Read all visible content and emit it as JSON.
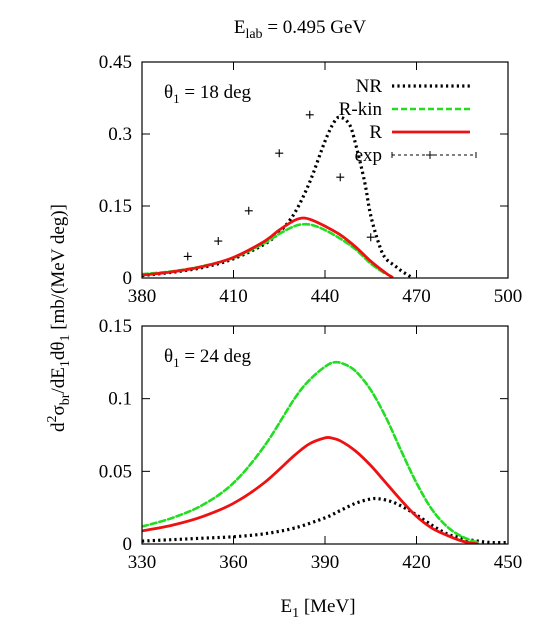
{
  "figure": {
    "title_main": "E",
    "title_sub": "lab",
    "title_rest": " = 0.495 GeV",
    "ylabel_parts": [
      "d",
      "2",
      "σ",
      "br",
      "/dE",
      "1",
      "dθ",
      "1",
      " [mb/(MeV deg)]"
    ],
    "xlabel_main": "E",
    "xlabel_sub": "1",
    "xlabel_rest": " [MeV]"
  },
  "colors": {
    "NR": "#000000",
    "R-kin": "#22dd22",
    "R": "#ee1111",
    "exp": "#000000"
  },
  "chart_data": [
    {
      "type": "line",
      "panel": "top",
      "annotation_main": "θ",
      "annotation_sub": "1",
      "annotation_rest": " = 18 deg",
      "xlim": [
        380,
        500
      ],
      "ylim": [
        0,
        0.45
      ],
      "xticks": [
        380,
        410,
        440,
        470,
        500
      ],
      "yticks": [
        0,
        0.15,
        0.3,
        0.45
      ],
      "xtick_labels": [
        "380",
        "410",
        "440",
        "470",
        "500"
      ],
      "ytick_labels": [
        "0",
        "0.15",
        "0.3",
        "0.45"
      ],
      "legend_position": "top-right",
      "series": [
        {
          "name": "NR",
          "style": "dotted",
          "x": [
            380,
            390,
            400,
            410,
            420,
            425,
            430,
            435,
            440,
            443,
            445,
            448,
            450,
            453,
            455,
            458,
            460,
            463,
            465,
            468
          ],
          "y": [
            0.005,
            0.012,
            0.022,
            0.04,
            0.07,
            0.095,
            0.135,
            0.2,
            0.285,
            0.325,
            0.335,
            0.32,
            0.28,
            0.2,
            0.13,
            0.065,
            0.04,
            0.025,
            0.015,
            0.003
          ]
        },
        {
          "name": "R-kin",
          "style": "dashed",
          "x": [
            380,
            390,
            400,
            410,
            420,
            425,
            430,
            433,
            436,
            440,
            445,
            450,
            455,
            460
          ],
          "y": [
            0.008,
            0.014,
            0.025,
            0.042,
            0.072,
            0.092,
            0.108,
            0.112,
            0.11,
            0.1,
            0.082,
            0.06,
            0.03,
            0.008
          ]
        },
        {
          "name": "R",
          "style": "solid",
          "x": [
            380,
            390,
            400,
            410,
            420,
            425,
            430,
            433,
            436,
            440,
            445,
            450,
            455,
            460,
            462
          ],
          "y": [
            0.006,
            0.013,
            0.024,
            0.043,
            0.076,
            0.1,
            0.12,
            0.125,
            0.12,
            0.108,
            0.09,
            0.065,
            0.035,
            0.01,
            0.002
          ]
        },
        {
          "name": "exp",
          "style": "points",
          "x": [
            395,
            405,
            415,
            425,
            435,
            445,
            455
          ],
          "y": [
            0.045,
            0.077,
            0.14,
            0.26,
            0.34,
            0.21,
            0.085
          ]
        }
      ]
    },
    {
      "type": "line",
      "panel": "bottom",
      "annotation_main": "θ",
      "annotation_sub": "1",
      "annotation_rest": " = 24 deg",
      "xlim": [
        330,
        450
      ],
      "ylim": [
        0,
        0.15
      ],
      "xticks": [
        330,
        360,
        390,
        420,
        450
      ],
      "yticks": [
        0,
        0.05,
        0.1,
        0.15
      ],
      "xtick_labels": [
        "330",
        "360",
        "390",
        "420",
        "450"
      ],
      "ytick_labels": [
        "0",
        "0.05",
        "0.1",
        "0.15"
      ],
      "series": [
        {
          "name": "NR",
          "style": "dotted",
          "x": [
            330,
            340,
            350,
            360,
            370,
            380,
            390,
            395,
            400,
            405,
            408,
            412,
            416,
            420,
            425,
            430,
            435,
            440,
            445,
            450
          ],
          "y": [
            0.002,
            0.003,
            0.004,
            0.005,
            0.007,
            0.011,
            0.018,
            0.023,
            0.028,
            0.031,
            0.031,
            0.029,
            0.025,
            0.02,
            0.013,
            0.007,
            0.004,
            0.002,
            0.001,
            0.001
          ]
        },
        {
          "name": "R-kin",
          "style": "dashed",
          "x": [
            330,
            340,
            350,
            360,
            370,
            380,
            385,
            390,
            393,
            396,
            400,
            405,
            410,
            415,
            420,
            425,
            430,
            435,
            440
          ],
          "y": [
            0.012,
            0.018,
            0.027,
            0.042,
            0.067,
            0.1,
            0.113,
            0.122,
            0.125,
            0.124,
            0.119,
            0.106,
            0.087,
            0.064,
            0.042,
            0.024,
            0.012,
            0.005,
            0.001
          ]
        },
        {
          "name": "R",
          "style": "solid",
          "x": [
            330,
            340,
            350,
            360,
            370,
            380,
            385,
            390,
            392,
            395,
            400,
            405,
            410,
            415,
            420,
            425,
            430,
            435,
            440
          ],
          "y": [
            0.009,
            0.013,
            0.019,
            0.028,
            0.042,
            0.061,
            0.069,
            0.073,
            0.073,
            0.071,
            0.064,
            0.054,
            0.042,
            0.03,
            0.019,
            0.011,
            0.006,
            0.002,
            0.0
          ]
        }
      ]
    }
  ]
}
